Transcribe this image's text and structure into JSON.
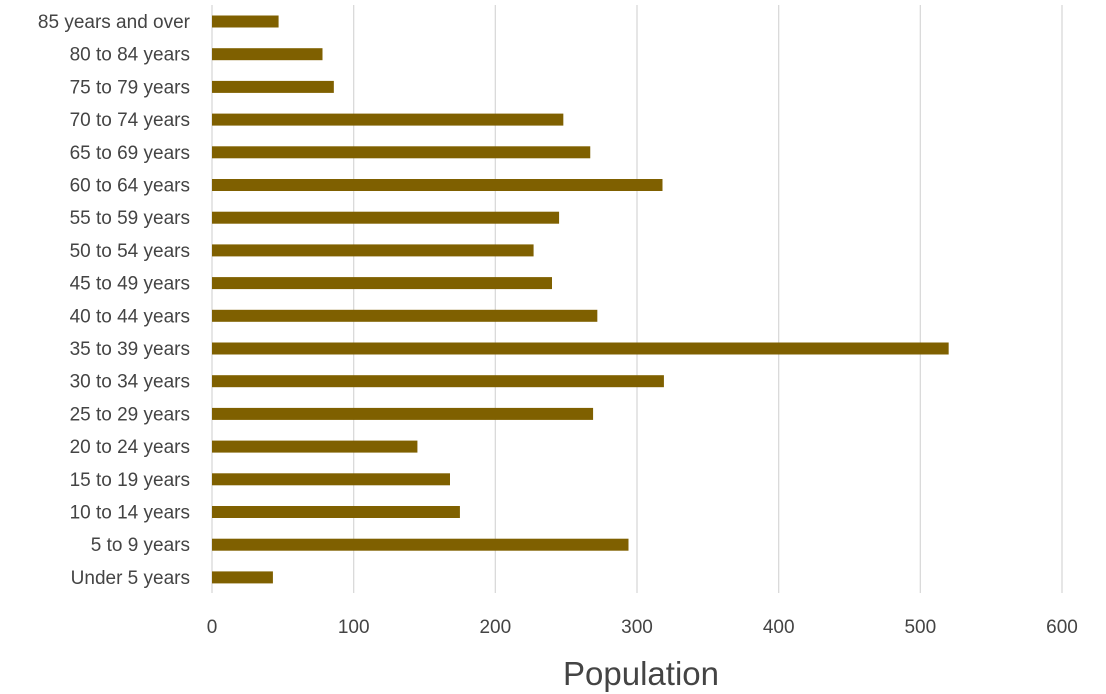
{
  "chart_data": {
    "type": "bar",
    "orientation": "horizontal",
    "categories": [
      "85 years and over",
      "80 to 84 years",
      "75 to 79 years",
      "70 to 74 years",
      "65 to 69 years",
      "60 to 64 years",
      "55 to 59 years",
      "50 to 54 years",
      "45 to 49 years",
      "40 to 44 years",
      "35 to 39 years",
      "30 to 34 years",
      "25 to 29 years",
      "20 to 24 years",
      "15 to 19 years",
      "10 to 14 years",
      "5 to 9 years",
      "Under 5 years"
    ],
    "values": [
      47,
      78,
      86,
      248,
      267,
      318,
      245,
      227,
      240,
      272,
      520,
      319,
      269,
      145,
      168,
      175,
      294,
      43
    ],
    "xlabel": "Population",
    "ylabel": "",
    "xlim": [
      0,
      600
    ],
    "xticks": [
      0,
      100,
      200,
      300,
      400,
      500,
      600
    ],
    "grid": true,
    "bar_color": "#7f6000"
  }
}
